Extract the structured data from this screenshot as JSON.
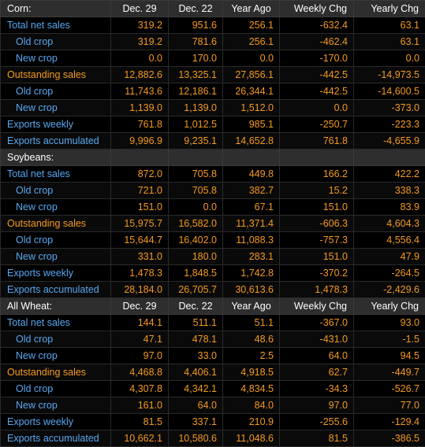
{
  "columns": [
    "Dec. 29",
    "Dec. 22",
    "Year Ago",
    "Weekly Chg",
    "Yearly Chg"
  ],
  "colors": {
    "header_bg": "#2e2e2e",
    "label_blue": "#58a8f0",
    "value_orange": "#f59a1e",
    "background": "#000000"
  },
  "sections": [
    {
      "title": "Corn:",
      "show_columns": true,
      "rows": [
        {
          "label": "Total net sales",
          "indent": false,
          "label_color": "blue",
          "values": [
            "319.2",
            "951.6",
            "256.1",
            "-632.4",
            "63.1"
          ]
        },
        {
          "label": "Old crop",
          "indent": true,
          "label_color": "blue",
          "values": [
            "319.2",
            "781.6",
            "256.1",
            "-462.4",
            "63.1"
          ]
        },
        {
          "label": "New crop",
          "indent": true,
          "label_color": "blue",
          "values": [
            "0.0",
            "170.0",
            "0.0",
            "-170.0",
            "0.0"
          ]
        },
        {
          "label": "Outstanding sales",
          "indent": false,
          "label_color": "orange",
          "values": [
            "12,882.6",
            "13,325.1",
            "27,856.1",
            "-442.5",
            "-14,973.5"
          ]
        },
        {
          "label": "Old crop",
          "indent": true,
          "label_color": "blue",
          "values": [
            "11,743.6",
            "12,186.1",
            "26,344.1",
            "-442.5",
            "-14,600.5"
          ]
        },
        {
          "label": "New crop",
          "indent": true,
          "label_color": "blue",
          "values": [
            "1,139.0",
            "1,139.0",
            "1,512.0",
            "0.0",
            "-373.0"
          ]
        },
        {
          "label": "Exports weekly",
          "indent": false,
          "label_color": "blue",
          "values": [
            "761.8",
            "1,012.5",
            "985.1",
            "-250.7",
            "-223.3"
          ]
        },
        {
          "label": "Exports accumulated",
          "indent": false,
          "label_color": "blue",
          "values": [
            "9,996.9",
            "9,235.1",
            "14,652.8",
            "761.8",
            "-4,655.9"
          ]
        }
      ]
    },
    {
      "title": "Soybeans:",
      "show_columns": false,
      "rows": [
        {
          "label": "Total net sales",
          "indent": false,
          "label_color": "blue",
          "values": [
            "872.0",
            "705.8",
            "449.8",
            "166.2",
            "422.2"
          ]
        },
        {
          "label": "Old crop",
          "indent": true,
          "label_color": "blue",
          "values": [
            "721.0",
            "705.8",
            "382.7",
            "15.2",
            "338.3"
          ]
        },
        {
          "label": "New crop",
          "indent": true,
          "label_color": "blue",
          "values": [
            "151.0",
            "0.0",
            "67.1",
            "151.0",
            "83.9"
          ]
        },
        {
          "label": "Outstanding sales",
          "indent": false,
          "label_color": "orange",
          "values": [
            "15,975.7",
            "16,582.0",
            "11,371.4",
            "-606.3",
            "4,604.3"
          ]
        },
        {
          "label": "Old crop",
          "indent": true,
          "label_color": "blue",
          "values": [
            "15,644.7",
            "16,402.0",
            "11,088.3",
            "-757.3",
            "4,556.4"
          ]
        },
        {
          "label": "New crop",
          "indent": true,
          "label_color": "blue",
          "values": [
            "331.0",
            "180.0",
            "283.1",
            "151.0",
            "47.9"
          ]
        },
        {
          "label": "Exports weekly",
          "indent": false,
          "label_color": "blue",
          "values": [
            "1,478.3",
            "1,848.5",
            "1,742.8",
            "-370.2",
            "-264.5"
          ]
        },
        {
          "label": "Exports accumulated",
          "indent": false,
          "label_color": "blue",
          "values": [
            "28,184.0",
            "26,705.7",
            "30,613.6",
            "1,478.3",
            "-2,429.6"
          ]
        }
      ]
    },
    {
      "title": "All Wheat:",
      "show_columns": true,
      "rows": [
        {
          "label": "Total net sales",
          "indent": false,
          "label_color": "blue",
          "values": [
            "144.1",
            "511.1",
            "51.1",
            "-367.0",
            "93.0"
          ]
        },
        {
          "label": "Old crop",
          "indent": true,
          "label_color": "blue",
          "values": [
            "47.1",
            "478.1",
            "48.6",
            "-431.0",
            "-1.5"
          ]
        },
        {
          "label": "New crop",
          "indent": true,
          "label_color": "blue",
          "values": [
            "97.0",
            "33.0",
            "2.5",
            "64.0",
            "94.5"
          ]
        },
        {
          "label": "Outstanding sales",
          "indent": false,
          "label_color": "orange",
          "values": [
            "4,468.8",
            "4,406.1",
            "4,918.5",
            "62.7",
            "-449.7"
          ]
        },
        {
          "label": "Old crop",
          "indent": true,
          "label_color": "blue",
          "values": [
            "4,307.8",
            "4,342.1",
            "4,834.5",
            "-34.3",
            "-526.7"
          ]
        },
        {
          "label": "New crop",
          "indent": true,
          "label_color": "blue",
          "values": [
            "161.0",
            "64.0",
            "84.0",
            "97.0",
            "77.0"
          ]
        },
        {
          "label": "Exports weekly",
          "indent": false,
          "label_color": "blue",
          "values": [
            "81.5",
            "337.1",
            "210.9",
            "-255.6",
            "-129.4"
          ]
        },
        {
          "label": "Exports accumulated",
          "indent": false,
          "label_color": "blue",
          "values": [
            "10,662.1",
            "10,580.6",
            "11,048.6",
            "81.5",
            "-386.5"
          ]
        }
      ]
    }
  ]
}
